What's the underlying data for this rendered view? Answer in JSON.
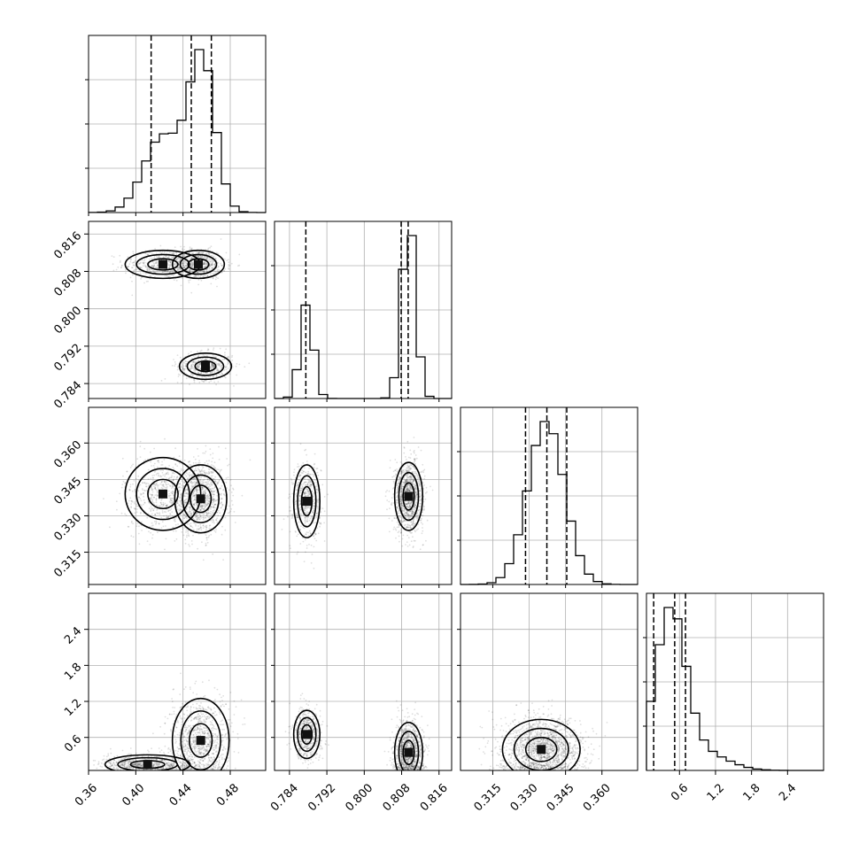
{
  "chart_data": {
    "type": "corner",
    "grid": true,
    "parameters": [
      {
        "range": [
          0.36,
          0.51
        ],
        "ticks": [
          0.36,
          0.4,
          0.44,
          0.48
        ],
        "tick_labels": [
          "0.36",
          "0.40",
          "0.44",
          "0.48"
        ],
        "quantiles": [
          0.413,
          0.447,
          0.464
        ],
        "modes": [
          {
            "center": 0.423,
            "sd": 0.016,
            "weight": 0.42
          },
          {
            "center": 0.456,
            "sd": 0.011,
            "weight": 0.58
          }
        ]
      },
      {
        "range": [
          0.7808,
          0.8187
        ],
        "ticks": [
          0.784,
          0.792,
          0.8,
          0.808,
          0.816
        ],
        "tick_labels": [
          "0.784",
          "0.792",
          "0.800",
          "0.808",
          "0.816"
        ],
        "quantiles": [
          0.7875,
          0.8079,
          0.8094
        ],
        "modes": [
          {
            "center": 0.7877,
            "sd": 0.0014,
            "weight": 0.33
          },
          {
            "center": 0.8095,
            "sd": 0.0015,
            "weight": 0.67
          }
        ]
      },
      {
        "range": [
          0.3017,
          0.3747
        ],
        "ticks": [
          0.315,
          0.33,
          0.345,
          0.36
        ],
        "tick_labels": [
          "0.315",
          "0.330",
          "0.345",
          "0.360"
        ],
        "quantiles": [
          0.3285,
          0.3373,
          0.3455
        ],
        "modes": [
          {
            "center": 0.337,
            "sd": 0.0075,
            "weight": 1.0
          }
        ]
      },
      {
        "range": [
          0.05,
          3.0
        ],
        "ticks": [
          0.6,
          1.2,
          1.8,
          2.4
        ],
        "tick_labels": [
          "0.6",
          "1.2",
          "1.8",
          "2.4"
        ],
        "quantiles": [
          0.17,
          0.52,
          0.7
        ],
        "modes": [
          {
            "center": 0.45,
            "sd": 0.25,
            "weight": 0.85
          },
          {
            "center": 1.0,
            "sd": 0.4,
            "weight": 0.15
          }
        ]
      }
    ],
    "pairs": [
      {
        "row": 1,
        "col": 0,
        "blobs": [
          {
            "x": 0.423,
            "y": 0.8095,
            "sx": 0.016,
            "sy": 0.0015,
            "w": 0.3
          },
          {
            "x": 0.453,
            "y": 0.8095,
            "sx": 0.011,
            "sy": 0.0015,
            "w": 0.4
          },
          {
            "x": 0.459,
            "y": 0.7877,
            "sx": 0.011,
            "sy": 0.0014,
            "w": 0.3
          }
        ]
      },
      {
        "row": 2,
        "col": 0,
        "blobs": [
          {
            "x": 0.423,
            "y": 0.339,
            "sx": 0.016,
            "sy": 0.0075,
            "w": 0.4
          },
          {
            "x": 0.455,
            "y": 0.337,
            "sx": 0.011,
            "sy": 0.007,
            "w": 0.6
          }
        ]
      },
      {
        "row": 2,
        "col": 1,
        "blobs": [
          {
            "x": 0.7877,
            "y": 0.336,
            "sx": 0.0014,
            "sy": 0.0075,
            "w": 0.33
          },
          {
            "x": 0.8095,
            "y": 0.338,
            "sx": 0.0015,
            "sy": 0.007,
            "w": 0.67
          }
        ]
      },
      {
        "row": 3,
        "col": 0,
        "blobs": [
          {
            "x": 0.455,
            "y": 0.55,
            "sx": 0.012,
            "sy": 0.35,
            "w": 0.55
          },
          {
            "x": 0.41,
            "y": 0.15,
            "sx": 0.018,
            "sy": 0.08,
            "w": 0.45
          }
        ]
      },
      {
        "row": 3,
        "col": 1,
        "blobs": [
          {
            "x": 0.7877,
            "y": 0.65,
            "sx": 0.0014,
            "sy": 0.2,
            "w": 0.33
          },
          {
            "x": 0.8095,
            "y": 0.35,
            "sx": 0.0015,
            "sy": 0.25,
            "w": 0.67
          }
        ]
      },
      {
        "row": 3,
        "col": 2,
        "blobs": [
          {
            "x": 0.335,
            "y": 0.4,
            "sx": 0.008,
            "sy": 0.25,
            "w": 1.0
          }
        ]
      }
    ]
  }
}
